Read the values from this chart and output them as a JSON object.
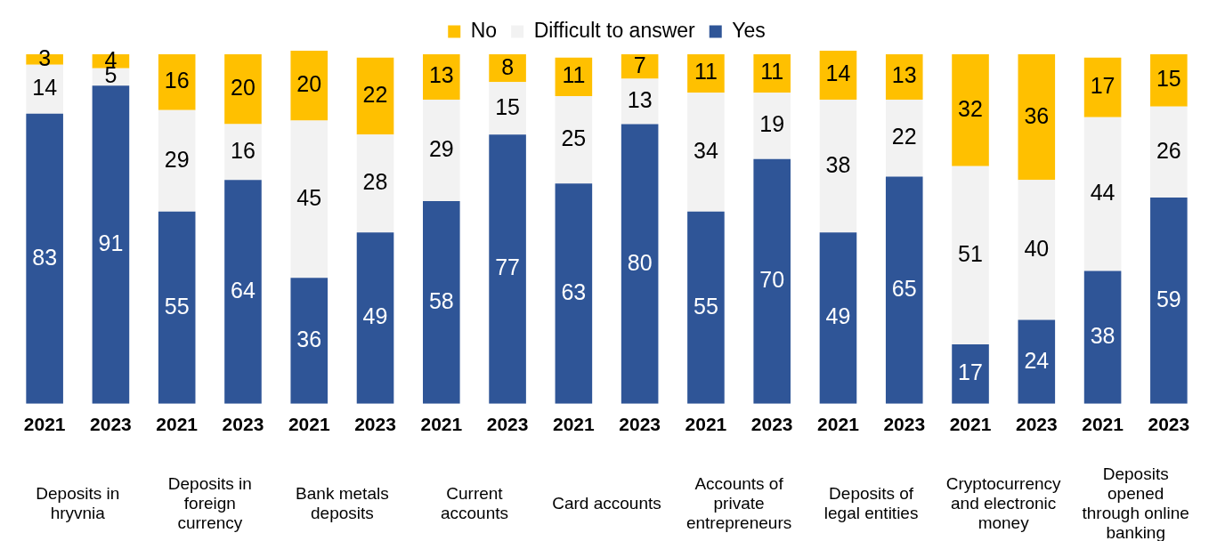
{
  "chart_data": {
    "type": "bar",
    "stacked": true,
    "data_labels": true,
    "legend": "top",
    "grid": false,
    "categories": [
      "2021",
      "2023",
      "2021",
      "2023",
      "2021",
      "2023",
      "2021",
      "2023",
      "2021",
      "2023",
      "2021",
      "2023",
      "2021",
      "2023",
      "2021",
      "2023",
      "2021",
      "2023"
    ],
    "series": [
      {
        "name": "Yes",
        "color": "#2f5597",
        "values": [
          83,
          91,
          55,
          64,
          36,
          49,
          58,
          77,
          63,
          80,
          55,
          70,
          49,
          65,
          17,
          24,
          38,
          59
        ]
      },
      {
        "name": "Difficult to answer",
        "color": "#f2f2f2",
        "values": [
          14,
          5,
          29,
          16,
          45,
          28,
          29,
          15,
          25,
          13,
          34,
          19,
          38,
          22,
          51,
          40,
          44,
          26
        ]
      },
      {
        "name": "No",
        "color": "#ffc000",
        "values": [
          3,
          4,
          16,
          20,
          20,
          22,
          13,
          8,
          11,
          7,
          11,
          11,
          14,
          13,
          32,
          36,
          17,
          15
        ]
      }
    ],
    "annotations": [
      "Deposits in hryvnia",
      "Deposits in foreign currency",
      "Bank metals deposits",
      "Current accounts",
      "Card accounts",
      "Accounts of private entrepreneurs",
      "Deposits of legal entities",
      "Cryptocurrency and electronic money",
      "Deposits opened through online banking"
    ]
  }
}
